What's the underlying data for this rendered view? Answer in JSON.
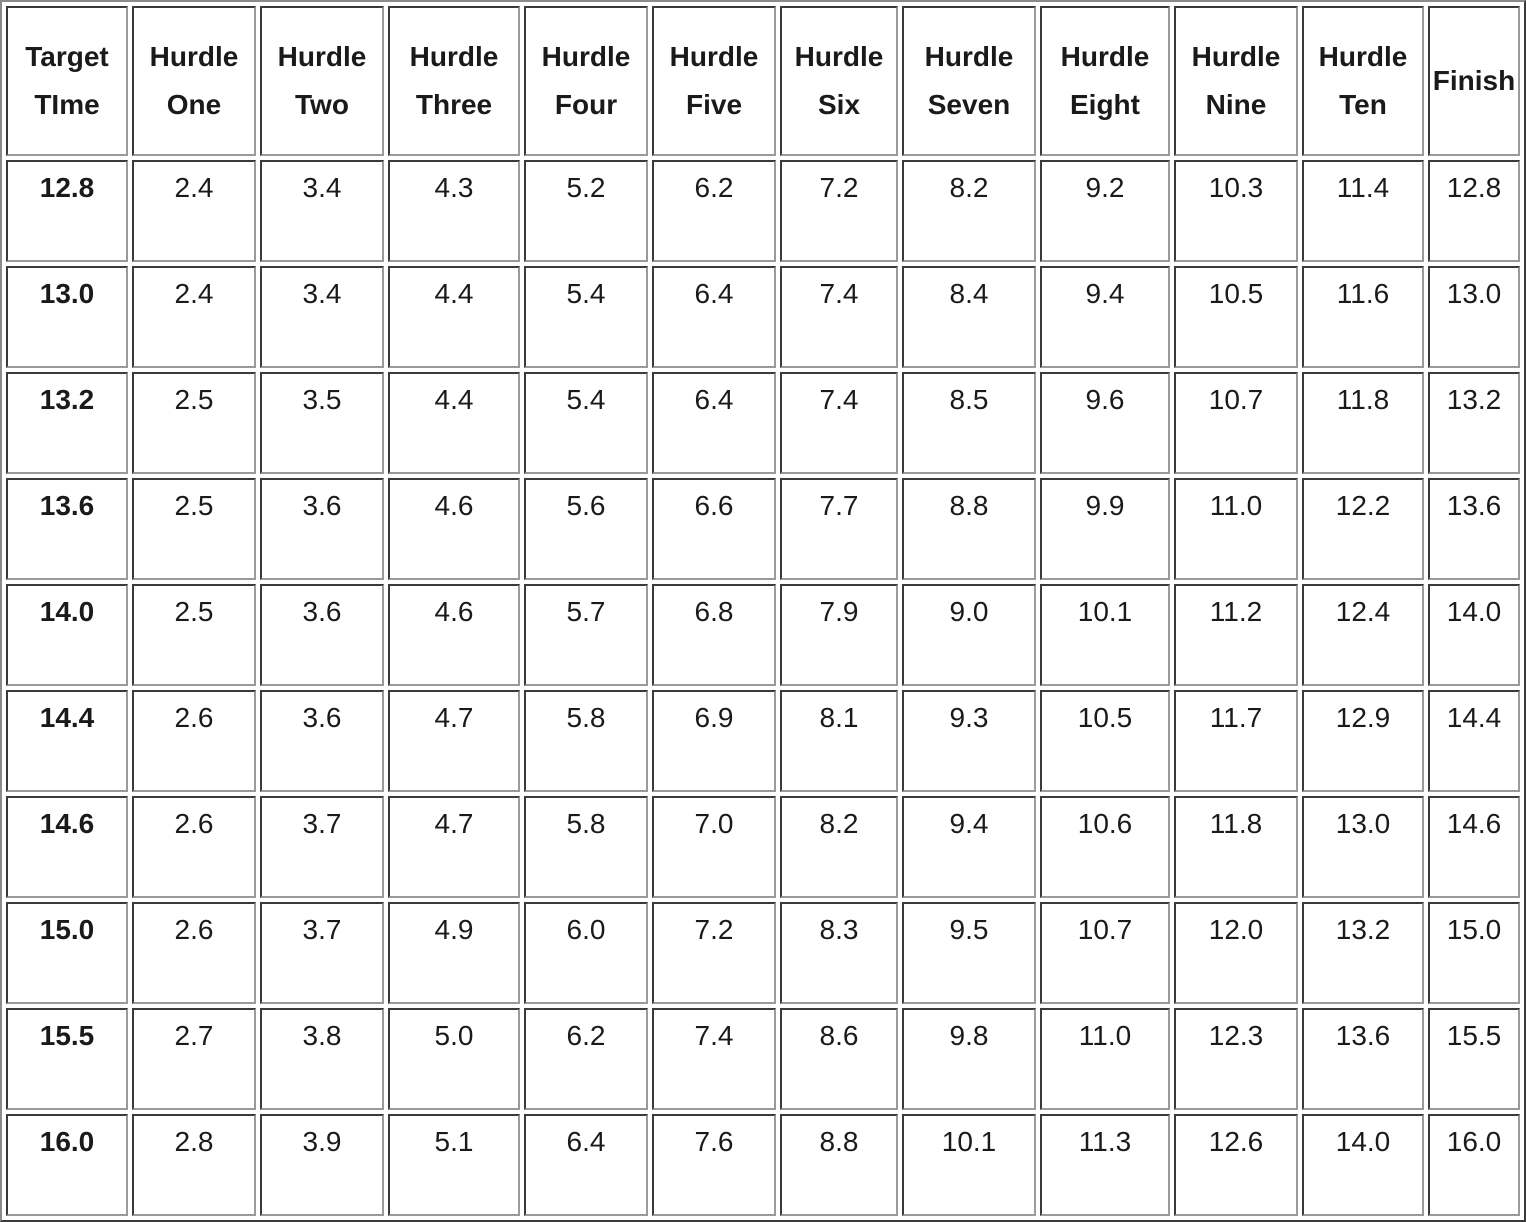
{
  "table": {
    "headers": [
      [
        "Target",
        "TIme"
      ],
      [
        "Hurdle",
        "One"
      ],
      [
        "Hurdle",
        "Two"
      ],
      [
        "Hurdle",
        "Three"
      ],
      [
        "Hurdle",
        "Four"
      ],
      [
        "Hurdle",
        "Five"
      ],
      [
        "Hurdle",
        "Six"
      ],
      [
        "Hurdle",
        "Seven"
      ],
      [
        "Hurdle",
        "Eight"
      ],
      [
        "Hurdle",
        "Nine"
      ],
      [
        "Hurdle",
        "Ten"
      ],
      [
        "Finish"
      ]
    ],
    "rows": [
      [
        "12.8",
        "2.4",
        "3.4",
        "4.3",
        "5.2",
        "6.2",
        "7.2",
        "8.2",
        "9.2",
        "10.3",
        "11.4",
        "12.8"
      ],
      [
        "13.0",
        "2.4",
        "3.4",
        "4.4",
        "5.4",
        "6.4",
        "7.4",
        "8.4",
        "9.4",
        "10.5",
        "11.6",
        "13.0"
      ],
      [
        "13.2",
        "2.5",
        "3.5",
        "4.4",
        "5.4",
        "6.4",
        "7.4",
        "8.5",
        "9.6",
        "10.7",
        "11.8",
        "13.2"
      ],
      [
        "13.6",
        "2.5",
        "3.6",
        "4.6",
        "5.6",
        "6.6",
        "7.7",
        "8.8",
        "9.9",
        "11.0",
        "12.2",
        "13.6"
      ],
      [
        "14.0",
        "2.5",
        "3.6",
        "4.6",
        "5.7",
        "6.8",
        "7.9",
        "9.0",
        "10.1",
        "11.2",
        "12.4",
        "14.0"
      ],
      [
        "14.4",
        "2.6",
        "3.6",
        "4.7",
        "5.8",
        "6.9",
        "8.1",
        "9.3",
        "10.5",
        "11.7",
        "12.9",
        "14.4"
      ],
      [
        "14.6",
        "2.6",
        "3.7",
        "4.7",
        "5.8",
        "7.0",
        "8.2",
        "9.4",
        "10.6",
        "11.8",
        "13.0",
        "14.6"
      ],
      [
        "15.0",
        "2.6",
        "3.7",
        "4.9",
        "6.0",
        "7.2",
        "8.3",
        "9.5",
        "10.7",
        "12.0",
        "13.2",
        "15.0"
      ],
      [
        "15.5",
        "2.7",
        "3.8",
        "5.0",
        "6.2",
        "7.4",
        "8.6",
        "9.8",
        "11.0",
        "12.3",
        "13.6",
        "15.5"
      ],
      [
        "16.0",
        "2.8",
        "3.9",
        "5.1",
        "6.4",
        "7.6",
        "8.8",
        "10.1",
        "11.3",
        "12.6",
        "14.0",
        "16.0"
      ]
    ]
  }
}
